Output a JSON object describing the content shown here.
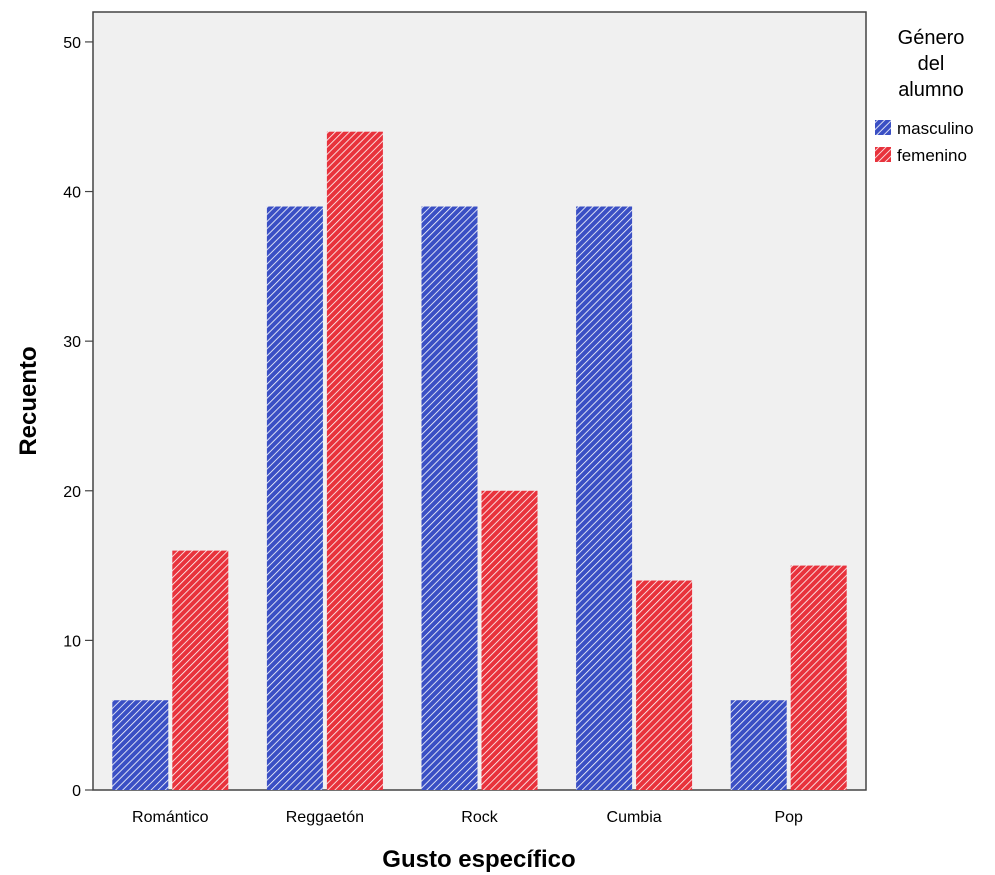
{
  "chart_data": {
    "type": "bar",
    "title": "",
    "xlabel": "Gusto específico",
    "ylabel": "Recuento",
    "categories": [
      "Romántico",
      "Reggaetón",
      "Rock",
      "Cumbia",
      "Pop"
    ],
    "series": [
      {
        "name": "masculino",
        "values": [
          6,
          39,
          39,
          39,
          6
        ],
        "color": "#3a4fc4"
      },
      {
        "name": "femenino",
        "values": [
          16,
          44,
          20,
          14,
          15
        ],
        "color": "#e8323c"
      }
    ],
    "ylim": [
      0,
      52
    ],
    "yticks": [
      0,
      10,
      20,
      30,
      40,
      50
    ],
    "grid": false,
    "legend": {
      "title_lines": [
        "Género",
        "del",
        "alumno"
      ],
      "placement": "right"
    },
    "plot_background": "#f0f0f0",
    "bar_pattern": "diagonal-hatch"
  }
}
